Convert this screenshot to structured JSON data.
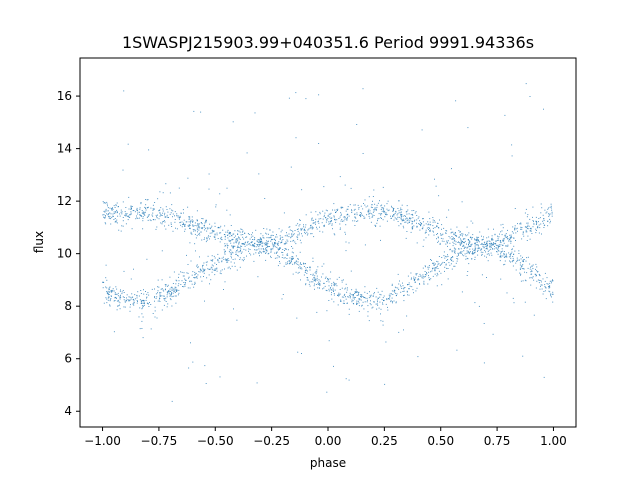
{
  "chart_data": {
    "type": "scatter",
    "title": "1SWASPJ215903.99+040351.6 Period 9991.94336s",
    "xlabel": "phase",
    "ylabel": "flux",
    "xlim": [
      -1.1,
      1.1
    ],
    "ylim": [
      3.4,
      17.45
    ],
    "xticks": [
      -1.0,
      -0.75,
      -0.5,
      -0.25,
      0.0,
      0.25,
      0.5,
      0.75,
      1.0
    ],
    "xtick_labels": [
      "−1.00",
      "−0.75",
      "−0.50",
      "−0.25",
      "0.00",
      "0.25",
      "0.50",
      "0.75",
      "1.00"
    ],
    "yticks": [
      4,
      6,
      8,
      10,
      12,
      14,
      16
    ],
    "ytick_labels": [
      "4",
      "6",
      "8",
      "10",
      "12",
      "14",
      "16"
    ],
    "grid": false,
    "legend": "none",
    "point_color": "#1f77b4",
    "phase_range": [
      -1.0,
      1.0
    ],
    "series": [
      {
        "curve_samples": {
          "phase": [
            -1.0,
            -0.9,
            -0.8,
            -0.7,
            -0.6,
            -0.5,
            -0.4,
            -0.3,
            -0.2,
            -0.1,
            0.0,
            0.1,
            0.2,
            0.3,
            0.4,
            0.5,
            0.6,
            0.7,
            0.8,
            0.9,
            1.0
          ],
          "flux": [
            11.5,
            11.6,
            11.55,
            11.35,
            11.1,
            10.8,
            10.5,
            10.3,
            10.55,
            10.95,
            11.3,
            11.55,
            11.6,
            11.45,
            11.15,
            10.85,
            10.5,
            10.3,
            10.6,
            11.05,
            11.5
          ]
        }
      },
      {
        "curve_samples": {
          "phase": [
            -1.0,
            -0.9,
            -0.8,
            -0.7,
            -0.6,
            -0.5,
            -0.4,
            -0.3,
            -0.2,
            -0.1,
            0.0,
            0.1,
            0.2,
            0.3,
            0.4,
            0.5,
            0.6,
            0.7,
            0.8,
            0.9,
            1.0
          ],
          "flux": [
            8.6,
            8.3,
            8.2,
            8.55,
            9.1,
            9.6,
            10.1,
            10.4,
            10.0,
            9.3,
            8.7,
            8.35,
            8.2,
            8.45,
            9.0,
            9.6,
            10.1,
            10.4,
            10.0,
            9.3,
            8.6
          ]
        }
      }
    ]
  }
}
